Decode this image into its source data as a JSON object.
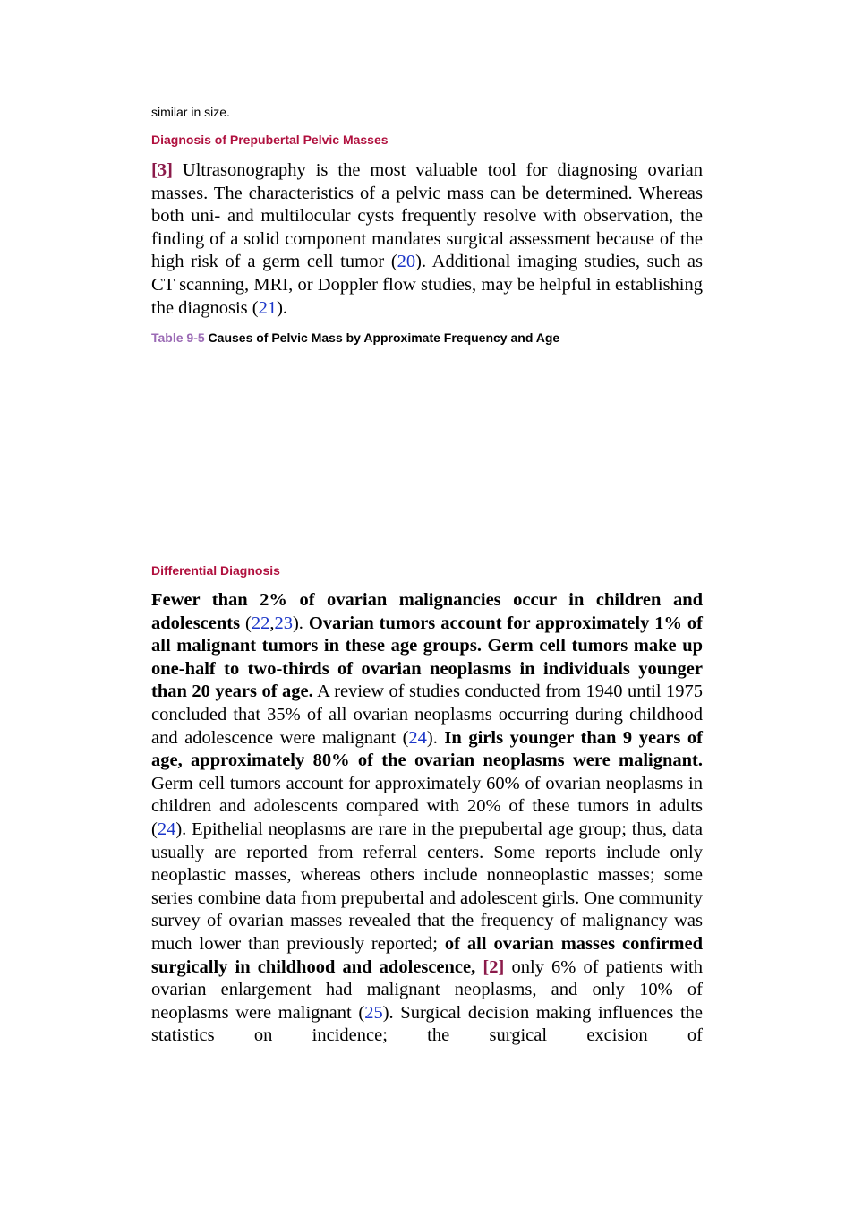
{
  "intro": "similar in size.",
  "sections": [
    {
      "heading": "Diagnosis of Prepubertal Pelvic Masses",
      "paragraph": [
        "[3]",
        " Ultrasonography is the most valuable tool for diagnosing ovarian masses. The characteristics of a pelvic mass can be determined. Whereas both uni- and multilocular cysts frequently resolve with observation, the finding of a solid component mandates surgical assessment because of the high risk of a germ cell tumor (",
        "20",
        "). Additional imaging studies, such as CT scanning, MRI, or Doppler flow studies, may be helpful in establishing the diagnosis (",
        "21",
        ")."
      ],
      "table_caption": {
        "label": "Table 9-5",
        "title": " Causes of Pelvic Mass by Approximate Frequency and Age"
      }
    },
    {
      "heading": "Differential Diagnosis",
      "paragraph": [
        "Fewer than 2% of ovarian malignancies occur in children and adolescents",
        " (",
        "22",
        ",",
        "23",
        "). ",
        "Ovarian tumors account for approximately 1% of all malignant tumors in these age groups. Germ cell tumors make up one-half to two-thirds of ovarian neoplasms in individuals younger than 20 years of age.",
        " A review of studies conducted from 1940 until 1975 concluded that 35% of all ovarian neoplasms occurring during childhood and adolescence were malignant (",
        "24",
        "). ",
        "In girls younger than 9 years of age, approximately 80% of the ovarian neoplasms were malignant.",
        " Germ cell tumors account for approximately 60% of ovarian neoplasms in children and adolescents compared with 20% of these tumors in adults (",
        "24",
        "). Epithelial neoplasms are rare in the prepubertal age group; thus, data usually are reported from referral centers. Some reports include only neoplastic masses, whereas others include nonneoplastic masses; some series combine data from prepubertal and adolescent girls. One community survey of ovarian masses revealed that the frequency of malignancy was much lower than previously reported; ",
        "of all ovarian masses confirmed surgically in childhood and adolescence,",
        " ",
        "[2]",
        " only 6% of patients with ovarian enlargement had malignant neoplasms, and only 10% of neoplasms were malignant (",
        "25",
        "). Surgical decision making influences the statistics on incidence; the surgical excision of"
      ]
    }
  ]
}
